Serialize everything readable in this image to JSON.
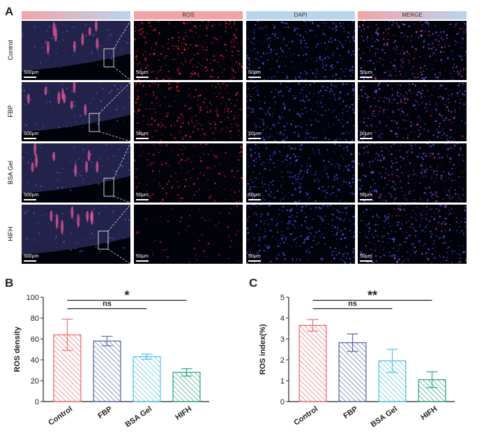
{
  "figure": {
    "panel_a_letter": "A",
    "columns": [
      "",
      "ROS",
      "DAPI",
      "MERGE"
    ],
    "rows": [
      "Control",
      "FBP",
      "BSA Gel",
      "HIFH"
    ],
    "scalebar_overview": "500μm",
    "scalebar_zoom": "50μm",
    "panel_b_letter": "B",
    "panel_c_letter": "C"
  },
  "colors": {
    "header_pink": "#f3a3a8",
    "header_blue": "#b8d5ec",
    "control": "#ef6f6f",
    "fbp": "#5b6aa8",
    "bsa_gel": "#56c3df",
    "hifh": "#2fa57e"
  },
  "chart_data": [
    {
      "type": "bar",
      "categories": [
        "Control",
        "FBP",
        "BSA Gel",
        "HIFH"
      ],
      "values": [
        64,
        58,
        43,
        28
      ],
      "errors": [
        15,
        4.5,
        2.5,
        3.5
      ],
      "ylabel": "ROS density",
      "ylim": [
        0,
        100
      ],
      "yticks": [
        0,
        20,
        40,
        60,
        80,
        100
      ],
      "significance": [
        {
          "from": "Control",
          "to": "BSA Gel",
          "label": "ns",
          "level": 89
        },
        {
          "from": "Control",
          "to": "HIFH",
          "label": "*",
          "level": 97
        }
      ]
    },
    {
      "type": "bar",
      "categories": [
        "Control",
        "FBP",
        "BSA Gel",
        "HIFH"
      ],
      "values": [
        3.65,
        2.82,
        1.95,
        1.05
      ],
      "errors": [
        0.28,
        0.42,
        0.55,
        0.38
      ],
      "ylabel": "ROS index(%)",
      "ylim": [
        0,
        5
      ],
      "yticks": [
        0,
        1,
        2,
        3,
        4,
        5
      ],
      "significance": [
        {
          "from": "Control",
          "to": "BSA Gel",
          "label": "ns",
          "level": 4.45
        },
        {
          "from": "Control",
          "to": "HIFH",
          "label": "**",
          "level": 4.85
        }
      ]
    }
  ]
}
